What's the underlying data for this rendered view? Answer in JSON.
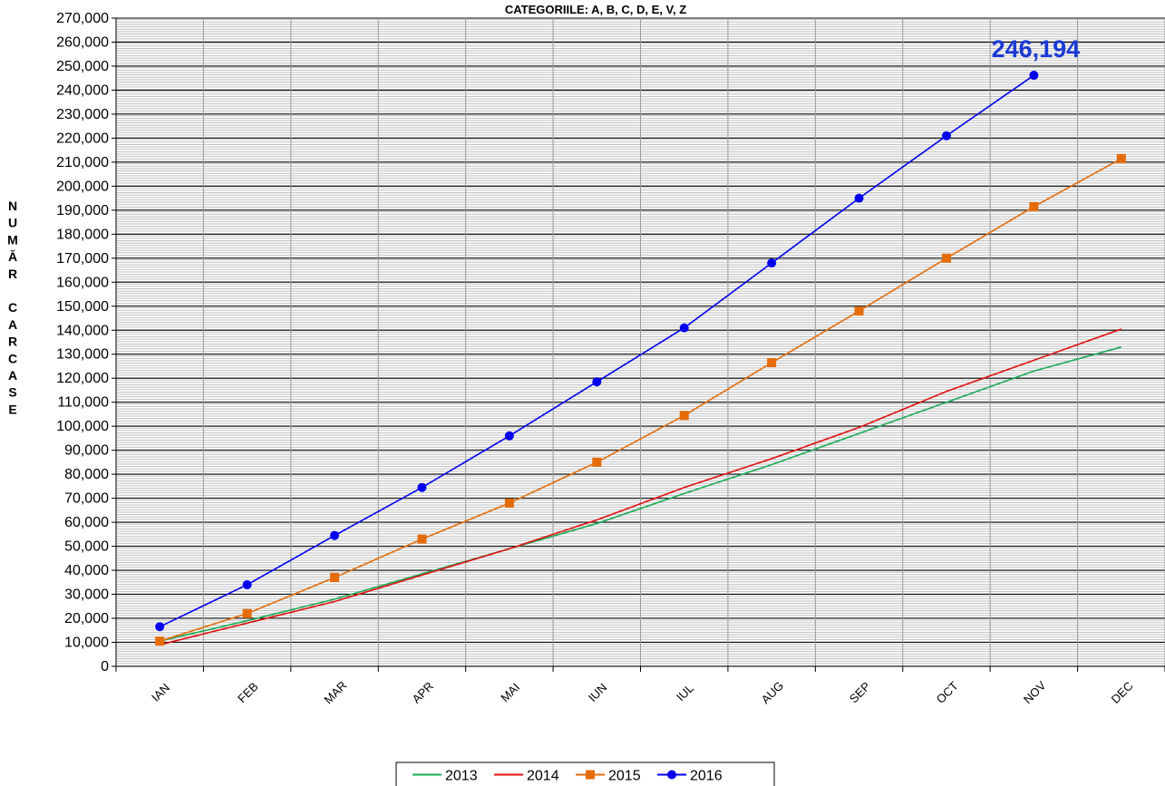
{
  "chart_data": {
    "type": "line",
    "title": "CATEGORIILE: A, B, C, D, E, V, Z",
    "ylabel": "NUMĂR CARCASE",
    "xlabel": "",
    "categories": [
      "IAN",
      "FEB",
      "MAR",
      "APR",
      "MAI",
      "IUN",
      "IUL",
      "AUG",
      "SEP",
      "OCT",
      "NOV",
      "DEC"
    ],
    "ylim": [
      0,
      270000
    ],
    "ytick_step": 10000,
    "grid": true,
    "legend_position": "bottom",
    "series": [
      {
        "name": "2013",
        "color": "#1aaa55",
        "marker": "none",
        "values": [
          10500,
          19000,
          28000,
          38500,
          49000,
          59500,
          72000,
          84000,
          97000,
          110000,
          123000,
          133000
        ]
      },
      {
        "name": "2014",
        "color": "#e01010",
        "marker": "none",
        "values": [
          9000,
          18000,
          27000,
          38000,
          49000,
          61000,
          74500,
          86500,
          99500,
          114500,
          127500,
          140500
        ]
      },
      {
        "name": "2015",
        "color": "#e46c0a",
        "marker": "square",
        "values": [
          10500,
          22000,
          37000,
          53000,
          68000,
          85000,
          104500,
          126500,
          148000,
          170000,
          191500,
          211500
        ]
      },
      {
        "name": "2016",
        "color": "#0000ee",
        "marker": "circle",
        "values": [
          16500,
          34000,
          54500,
          74500,
          96000,
          118500,
          141000,
          168000,
          195000,
          221000,
          246194,
          null
        ]
      }
    ],
    "annotation": {
      "text": "246,194",
      "series": "2016",
      "category": "NOV",
      "color": "#1a3ad4"
    }
  }
}
